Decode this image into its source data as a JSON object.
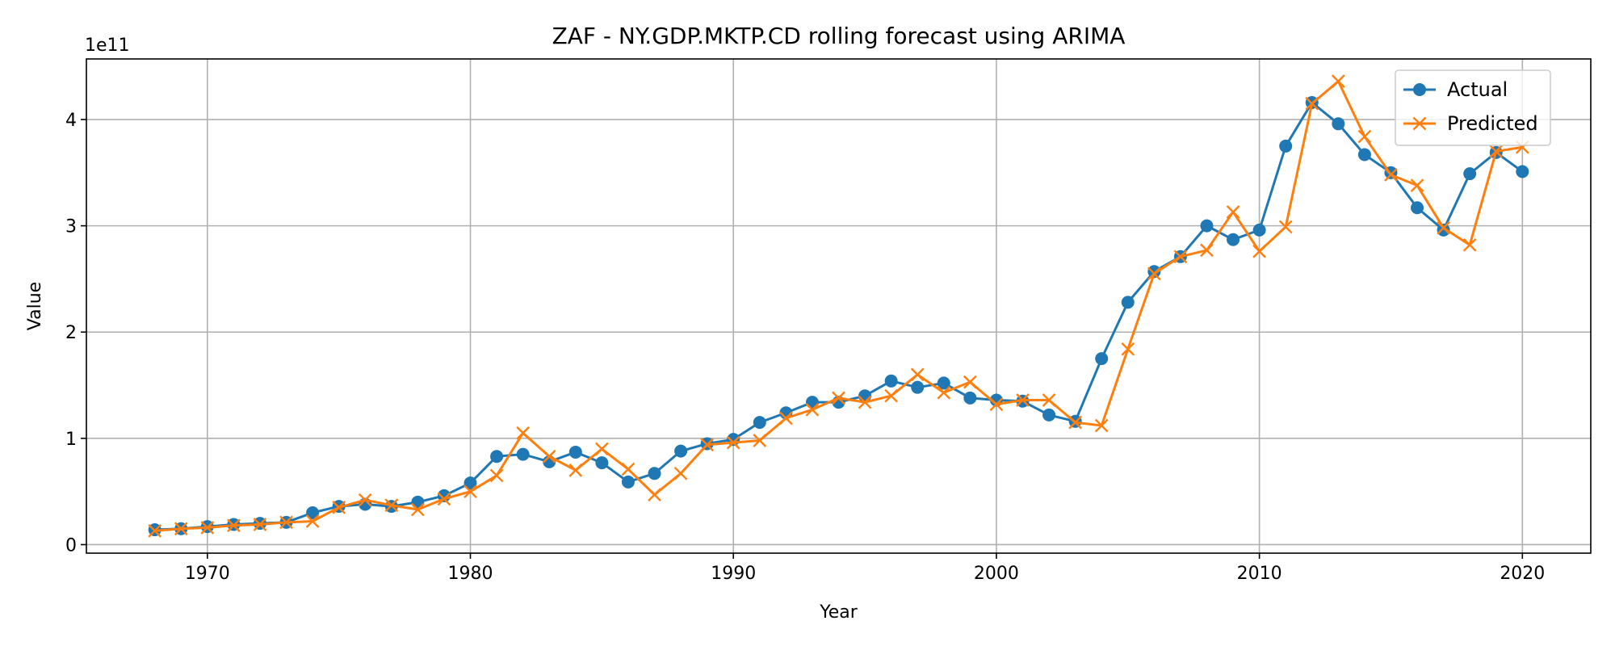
{
  "chart_data": {
    "type": "line",
    "title": "ZAF - NY.GDP.MKTP.CD rolling forecast using ARIMA",
    "xlabel": "Year",
    "ylabel": "Value",
    "y_offset_label": "1e11",
    "xlim": [
      1965.4,
      2022.6
    ],
    "ylim": [
      -0.08,
      4.57
    ],
    "x_ticks": [
      1970,
      1980,
      1990,
      2000,
      2010,
      2020
    ],
    "y_ticks": [
      0,
      1,
      2,
      3,
      4
    ],
    "grid": true,
    "legend_position": "top-right",
    "x": [
      1968,
      1969,
      1970,
      1971,
      1972,
      1973,
      1974,
      1975,
      1976,
      1977,
      1978,
      1979,
      1980,
      1981,
      1982,
      1983,
      1984,
      1985,
      1986,
      1987,
      1988,
      1989,
      1990,
      1991,
      1992,
      1993,
      1994,
      1995,
      1996,
      1997,
      1998,
      1999,
      2000,
      2001,
      2002,
      2003,
      2004,
      2005,
      2006,
      2007,
      2008,
      2009,
      2010,
      2011,
      2012,
      2013,
      2014,
      2015,
      2016,
      2017,
      2018,
      2019,
      2020
    ],
    "series": [
      {
        "name": "Actual",
        "color": "#1f77b4",
        "marker": "circle",
        "values": [
          0.14,
          0.15,
          0.17,
          0.19,
          0.2,
          0.21,
          0.3,
          0.36,
          0.38,
          0.36,
          0.4,
          0.46,
          0.58,
          0.83,
          0.85,
          0.78,
          0.87,
          0.77,
          0.59,
          0.67,
          0.88,
          0.95,
          0.99,
          1.15,
          1.24,
          1.34,
          1.34,
          1.4,
          1.54,
          1.48,
          1.52,
          1.38,
          1.36,
          1.35,
          1.22,
          1.16,
          1.75,
          2.28,
          2.57,
          2.71,
          3.0,
          2.87,
          2.96,
          3.75,
          4.16,
          3.96,
          3.67,
          3.5,
          3.17,
          2.96,
          3.49,
          3.69,
          3.51
        ]
      },
      {
        "name": "Predicted",
        "color": "#ff7f0e",
        "marker": "x",
        "values": [
          0.13,
          0.15,
          0.16,
          0.18,
          0.19,
          0.21,
          0.22,
          0.35,
          0.42,
          0.37,
          0.33,
          0.43,
          0.5,
          0.65,
          1.05,
          0.83,
          0.7,
          0.9,
          0.71,
          0.47,
          0.67,
          0.94,
          0.96,
          0.98,
          1.19,
          1.27,
          1.38,
          1.34,
          1.4,
          1.6,
          1.43,
          1.53,
          1.32,
          1.36,
          1.36,
          1.15,
          1.12,
          1.84,
          2.55,
          2.71,
          2.77,
          3.13,
          2.76,
          2.99,
          4.15,
          4.36,
          3.84,
          3.48,
          3.38,
          2.98,
          2.82,
          3.7,
          3.74
        ]
      }
    ]
  }
}
